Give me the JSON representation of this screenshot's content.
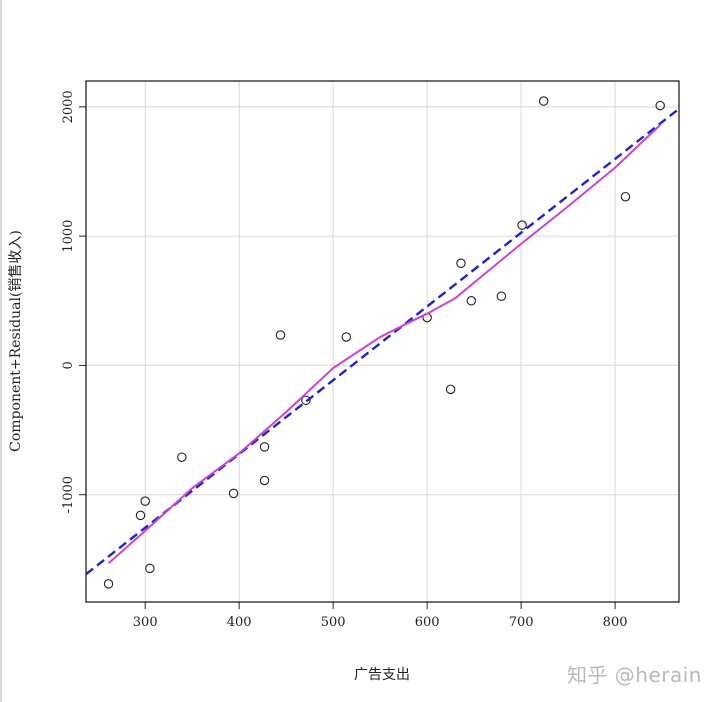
{
  "watermark": "知乎 @herain",
  "chart_data": {
    "type": "scatter",
    "xlabel": "广告支出",
    "ylabel": "Component+Residual(销售收入)",
    "xlim": [
      237,
      868
    ],
    "ylim": [
      -1830,
      2200
    ],
    "x_ticks": [
      300,
      400,
      500,
      600,
      700,
      800
    ],
    "y_ticks": [
      -1000,
      0,
      1000,
      2000
    ],
    "grid": true,
    "series": [
      {
        "type": "scatter",
        "marker": "open-circle",
        "color": "#222222",
        "points": [
          [
            261,
            -1690
          ],
          [
            295,
            -1160
          ],
          [
            300,
            -1050
          ],
          [
            305,
            -1570
          ],
          [
            339,
            -710
          ],
          [
            394,
            -990
          ],
          [
            427,
            -630
          ],
          [
            427,
            -890
          ],
          [
            444,
            235
          ],
          [
            471,
            -270
          ],
          [
            514,
            220
          ],
          [
            600,
            370
          ],
          [
            625,
            -185
          ],
          [
            636,
            790
          ],
          [
            647,
            500
          ],
          [
            679,
            535
          ],
          [
            701,
            1085
          ],
          [
            724,
            2045
          ],
          [
            811,
            1305
          ],
          [
            848,
            2010
          ]
        ]
      },
      {
        "type": "line",
        "style": "dashed",
        "color": "#2222cc",
        "points": [
          [
            237,
            -1615
          ],
          [
            868,
            1985
          ]
        ]
      },
      {
        "type": "line",
        "style": "solid",
        "color": "#cc44cc",
        "points": [
          [
            261,
            -1530
          ],
          [
            300,
            -1280
          ],
          [
            350,
            -950
          ],
          [
            400,
            -680
          ],
          [
            450,
            -360
          ],
          [
            500,
            -20
          ],
          [
            550,
            220
          ],
          [
            580,
            330
          ],
          [
            600,
            400
          ],
          [
            630,
            520
          ],
          [
            660,
            700
          ],
          [
            700,
            940
          ],
          [
            750,
            1230
          ],
          [
            800,
            1530
          ],
          [
            848,
            1860
          ]
        ]
      }
    ]
  }
}
